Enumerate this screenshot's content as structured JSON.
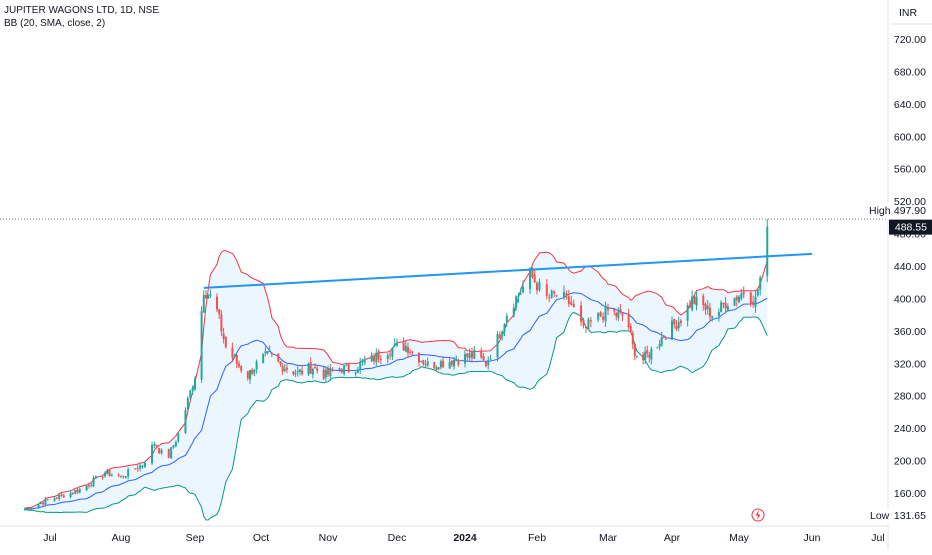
{
  "chart_data": {
    "type": "candlestick",
    "title": "JUPITER WAGONS LTD, 1D, NSE",
    "subtitle": "BB (20, SMA, close, 2)",
    "currency_label": "INR",
    "y_ticks": [
      "720.00",
      "680.00",
      "640.00",
      "600.00",
      "560.00",
      "520.00",
      "480.00",
      "440.00",
      "400.00",
      "360.00",
      "320.00",
      "280.00",
      "240.00",
      "200.00",
      "160.00"
    ],
    "y_tick_values": [
      720,
      680,
      640,
      600,
      560,
      520,
      480,
      440,
      400,
      360,
      320,
      280,
      240,
      200,
      160
    ],
    "ylim": [
      131.65,
      745
    ],
    "x_labels": [
      "Jul",
      "Aug",
      "Sep",
      "Oct",
      "Nov",
      "Dec",
      "2024",
      "Feb",
      "Mar",
      "Apr",
      "May",
      "Jun",
      "Jul"
    ],
    "x_label_dates": [
      "2023-07-01",
      "2023-08-01",
      "2023-09-01",
      "2023-10-01",
      "2023-11-01",
      "2023-12-01",
      "2024-01-01",
      "2024-02-01",
      "2024-03-01",
      "2024-04-01",
      "2024-05-01",
      "2024-06-01",
      "2024-07-01"
    ],
    "high_label": "High",
    "high_value": "497.90",
    "low_label": "Low",
    "low_value": "131.65",
    "last_price": "488.55",
    "trendline": {
      "start": {
        "date": "2023-09-05",
        "price": 413
      },
      "end": {
        "date": "2024-06-01",
        "price": 455
      }
    },
    "colors": {
      "up": "#26a69a",
      "down": "#ef5350",
      "upper_band": "#f23645",
      "lower_band": "#089981",
      "basis": "#2962ff",
      "band_fill": "#e3f2fd",
      "trendline": "#2196f3",
      "axis_text": "#131722"
    },
    "price_path": [
      [
        "2023-06-20",
        140
      ],
      [
        "2023-07-01",
        152
      ],
      [
        "2023-07-15",
        165
      ],
      [
        "2023-07-25",
        185
      ],
      [
        "2023-08-01",
        180
      ],
      [
        "2023-08-10",
        195
      ],
      [
        "2023-08-15",
        222
      ],
      [
        "2023-08-20",
        200
      ],
      [
        "2023-08-25",
        232
      ],
      [
        "2023-09-01",
        305
      ],
      [
        "2023-09-05",
        412
      ],
      [
        "2023-09-10",
        395
      ],
      [
        "2023-09-15",
        340
      ],
      [
        "2023-09-20",
        320
      ],
      [
        "2023-09-25",
        305
      ],
      [
        "2023-10-01",
        325
      ],
      [
        "2023-10-05",
        330
      ],
      [
        "2023-10-10",
        318
      ],
      [
        "2023-10-18",
        308
      ],
      [
        "2023-10-25",
        315
      ],
      [
        "2023-10-31",
        305
      ],
      [
        "2023-11-05",
        315
      ],
      [
        "2023-11-10",
        312
      ],
      [
        "2023-11-20",
        325
      ],
      [
        "2023-11-28",
        338
      ],
      [
        "2023-12-05",
        342
      ],
      [
        "2023-12-10",
        330
      ],
      [
        "2023-12-15",
        318
      ],
      [
        "2023-12-20",
        320
      ],
      [
        "2023-12-28",
        325
      ],
      [
        "2024-01-05",
        330
      ],
      [
        "2024-01-10",
        320
      ],
      [
        "2024-01-15",
        350
      ],
      [
        "2024-01-20",
        390
      ],
      [
        "2024-01-25",
        408
      ],
      [
        "2024-01-29",
        430
      ],
      [
        "2024-02-05",
        400
      ],
      [
        "2024-02-10",
        405
      ],
      [
        "2024-02-15",
        392
      ],
      [
        "2024-02-20",
        360
      ],
      [
        "2024-02-25",
        375
      ],
      [
        "2024-03-01",
        385
      ],
      [
        "2024-03-05",
        380
      ],
      [
        "2024-03-10",
        378
      ],
      [
        "2024-03-13",
        340
      ],
      [
        "2024-03-17",
        322
      ],
      [
        "2024-03-22",
        335
      ],
      [
        "2024-03-28",
        355
      ],
      [
        "2024-04-05",
        375
      ],
      [
        "2024-04-10",
        398
      ],
      [
        "2024-04-15",
        390
      ],
      [
        "2024-04-20",
        378
      ],
      [
        "2024-04-25",
        395
      ],
      [
        "2024-04-30",
        402
      ],
      [
        "2024-05-03",
        408
      ],
      [
        "2024-05-08",
        398
      ],
      [
        "2024-05-10",
        425
      ],
      [
        "2024-05-13",
        488.55
      ]
    ]
  }
}
